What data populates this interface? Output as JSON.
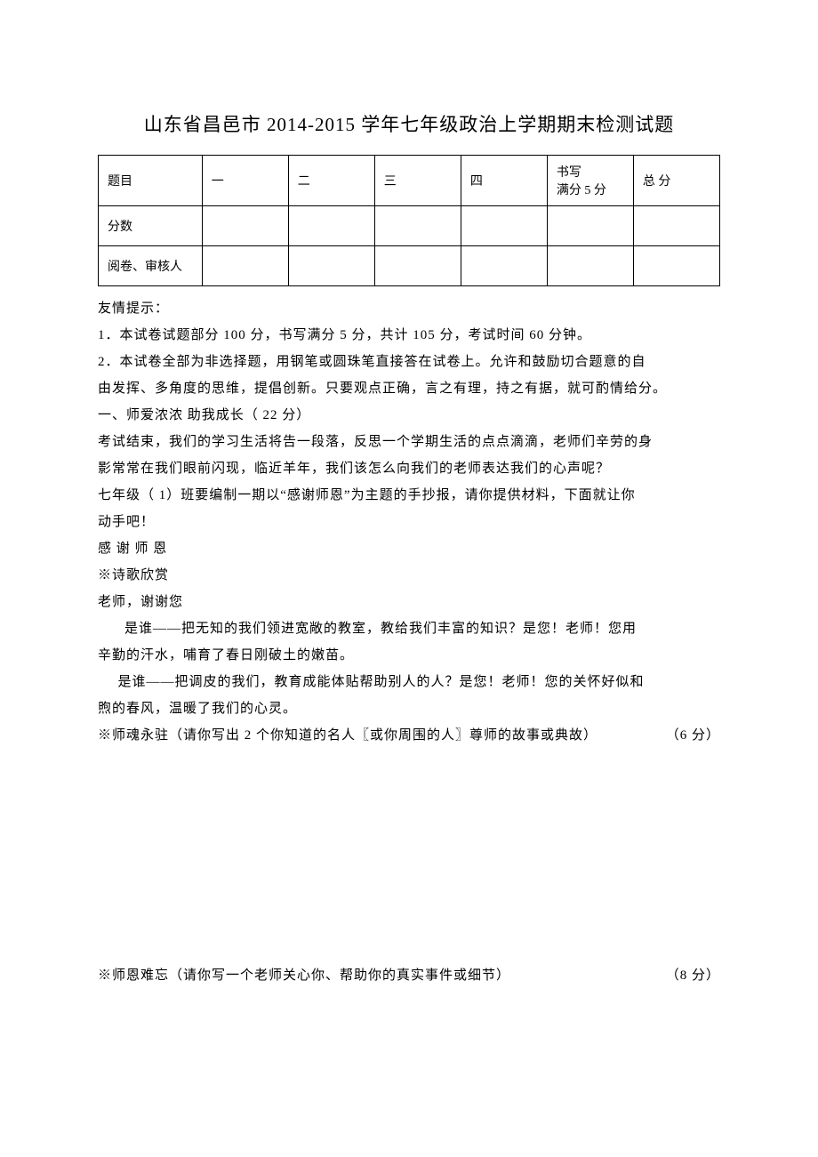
{
  "title": "山东省昌邑市   2014-2015 学年七年级政治上学期期末检测试题",
  "table": {
    "row1": {
      "c0": "题目",
      "c1": "一",
      "c2": "二",
      "c3": "三",
      "c4": "四",
      "c5_l1": "书写",
      "c5_l2": "满分 5 分",
      "c6": "总  分"
    },
    "row2": {
      "c0": "分数"
    },
    "row3": {
      "c0": "阅卷、审核人"
    }
  },
  "body": {
    "tip_label": "友情提示：",
    "tip1": "1．本试卷试题部分   100 分，书写满分   5 分，共计  105 分，考试时间   60 分钟。",
    "tip2": "2．本试卷全部为非选择题，用钢笔或圆珠笔直接答在试卷上。允许和鼓励切合题意的自",
    "tip3": "由发挥、多角度的思维，提倡创新。只要观点正确，言之有理，持之有据，就可酌情给分。",
    "section1": "一、师爱浓浓    助我成长（ 22 分）",
    "p1": "考试结束，我们的学习生活将告一段落，反思一个学期生活的点点滴滴，老师们辛劳的身",
    "p2": "影常常在我们眼前闪现，临近羊年，我们该怎么向我们的老师表达我们的心声呢？",
    "p3": "七年级（ 1）班要编制一期以“感谢师恩”为主题的手抄报，请你提供材料，下面就让你",
    "p4": "动手吧！",
    "p5": "感  谢  师  恩",
    "p6": "※诗歌欣赏",
    "p7": "老师，谢谢您",
    "p8": "是谁——把无知的我们领进宽敞的教室，教给我们丰富的知识？是您！老师！您用",
    "p9": "辛勤的汗水，哺育了春日刚破土的嫩苗。",
    "p10": "是谁——把调皮的我们，教育成能体贴帮助别人的人？是您！老师！您的关怀好似和",
    "p11": "煦的春风，温暖了我们的心灵。",
    "q1_text": "※师魂永驻（请你写出    2 个你知道的名人〖或你周围的人〗尊师的故事或典故）",
    "q1_points": "（6 分）",
    "q2_text": "※师恩难忘（请你写一个老师关心你、帮助你的真实事件或细节）",
    "q2_points": "（8 分）"
  },
  "style": {
    "text_color": "#000000",
    "bg_color": "#ffffff",
    "border_color": "#000000",
    "body_fontsize": 15,
    "title_fontsize": 21
  }
}
